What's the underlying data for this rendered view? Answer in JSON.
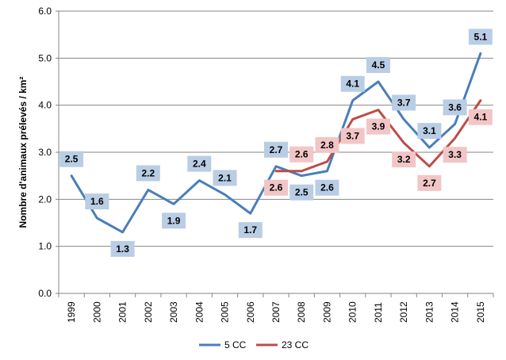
{
  "chart_data": {
    "type": "line",
    "title": "",
    "xlabel": "",
    "ylabel": "Nombre d'animaux prélevés / km²",
    "ylim": [
      0,
      6
    ],
    "yticks": [
      "0.0",
      "1.0",
      "2.0",
      "3.0",
      "4.0",
      "5.0",
      "6.0"
    ],
    "categories": [
      "1999",
      "2000",
      "2001",
      "2002",
      "2003",
      "2004",
      "2005",
      "2006",
      "2007",
      "2008",
      "2009",
      "2010",
      "2011",
      "2012",
      "2013",
      "2014",
      "2015"
    ],
    "grid": true,
    "legend_position": "bottom",
    "series": [
      {
        "name": "5 CC",
        "color": "#4a7ebb",
        "label_bg": "#b9cde5",
        "values": [
          2.5,
          1.6,
          1.3,
          2.2,
          1.9,
          2.4,
          2.1,
          1.7,
          2.7,
          2.5,
          2.6,
          4.1,
          4.5,
          3.7,
          3.1,
          3.6,
          5.1
        ],
        "labels": [
          "2.5",
          "1.6",
          "1.3",
          "2.2",
          "1.9",
          "2.4",
          "2.1",
          "1.7",
          "2.7",
          "2.5",
          "2.6",
          "4.1",
          "4.5",
          "3.7",
          "3.1",
          "3.6",
          "5.1"
        ]
      },
      {
        "name": "23 CC",
        "color": "#be4b48",
        "label_bg": "#f2c6c6",
        "values": [
          null,
          null,
          null,
          null,
          null,
          null,
          null,
          null,
          2.6,
          2.6,
          2.8,
          3.7,
          3.9,
          3.2,
          2.7,
          3.3,
          4.1
        ],
        "labels": [
          null,
          null,
          null,
          null,
          null,
          null,
          null,
          null,
          "2.6",
          "2.6",
          "2.8",
          "3.7",
          "3.9",
          "3.2",
          "2.7",
          "3.3",
          "4.1"
        ]
      }
    ]
  }
}
